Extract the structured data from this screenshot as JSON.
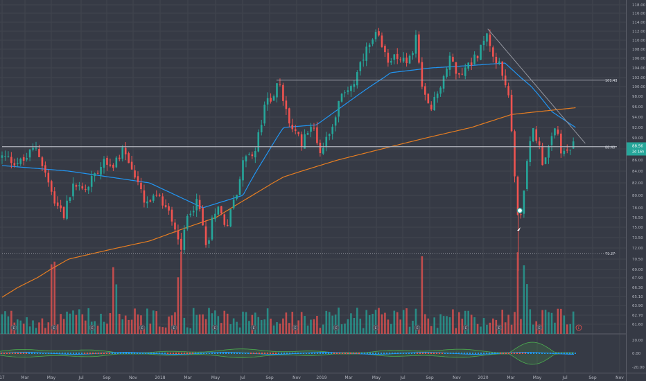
{
  "colors": {
    "background": "#363a45",
    "grid": "#41454f",
    "axis_text": "#b2b5be",
    "up": "#26a69a",
    "down": "#ef5350",
    "ma_short": "#2196f3",
    "ma_long": "#e67e22",
    "trendline": "#9598a1",
    "price_badge": "#26a69a",
    "osc_green": "#4caf50",
    "osc_blue": "#2196f3",
    "osc_red": "#ef5350"
  },
  "chart_data": [
    {
      "type": "candlestick",
      "title": "",
      "x_ticks": [
        "17",
        "Mar",
        "May",
        "Jul",
        "Sep",
        "Nov",
        "2018",
        "Mar",
        "May",
        "Jul",
        "Sep",
        "Nov",
        "2019",
        "Mar",
        "May",
        "Jul",
        "Sep",
        "Nov",
        "2020",
        "Mar",
        "May",
        "Jul",
        "Sep",
        "Nov"
      ],
      "y_ticks": [
        "118.00",
        "116.00",
        "114.00",
        "112.00",
        "110.00",
        "108.00",
        "106.00",
        "104.00",
        "102.00",
        "100.00",
        "98.00",
        "96.00",
        "94.00",
        "92.00",
        "90.00",
        "88.00",
        "86.00",
        "84.00",
        "82.00",
        "80.00",
        "78.00",
        "76.50",
        "75.00",
        "73.50",
        "72.00",
        "70.50",
        "69.00",
        "67.90",
        "66.30",
        "65.10",
        "63.90",
        "62.70",
        "61.60"
      ],
      "ylim": [
        60.5,
        119
      ],
      "scale": "log",
      "grid": true,
      "close_anchors": [
        {
          "date": "2017-01-01",
          "close": 86.5
        },
        {
          "date": "2017-02-15",
          "close": 85.5
        },
        {
          "date": "2017-03-20",
          "close": 88.5
        },
        {
          "date": "2017-04-20",
          "close": 81
        },
        {
          "date": "2017-05-20",
          "close": 77
        },
        {
          "date": "2017-06-15",
          "close": 82
        },
        {
          "date": "2017-07-05",
          "close": 80.5
        },
        {
          "date": "2017-07-25",
          "close": 83
        },
        {
          "date": "2017-08-20",
          "close": 86.5
        },
        {
          "date": "2017-09-10",
          "close": 85
        },
        {
          "date": "2017-10-01",
          "close": 88
        },
        {
          "date": "2017-10-25",
          "close": 84
        },
        {
          "date": "2017-11-20",
          "close": 78.5
        },
        {
          "date": "2017-12-20",
          "close": 79.5
        },
        {
          "date": "2018-01-15",
          "close": 78
        },
        {
          "date": "2018-02-10",
          "close": 72
        },
        {
          "date": "2018-03-01",
          "close": 77.5
        },
        {
          "date": "2018-03-20",
          "close": 79
        },
        {
          "date": "2018-04-10",
          "close": 72.5
        },
        {
          "date": "2018-05-01",
          "close": 78.5
        },
        {
          "date": "2018-05-25",
          "close": 75.5
        },
        {
          "date": "2018-06-15",
          "close": 80
        },
        {
          "date": "2018-07-10",
          "close": 88
        },
        {
          "date": "2018-07-25",
          "close": 86
        },
        {
          "date": "2018-08-20",
          "close": 96
        },
        {
          "date": "2018-09-20",
          "close": 100.5
        },
        {
          "date": "2018-10-10",
          "close": 94
        },
        {
          "date": "2018-10-25",
          "close": 91
        },
        {
          "date": "2018-11-10",
          "close": 89
        },
        {
          "date": "2018-11-30",
          "close": 93
        },
        {
          "date": "2018-12-25",
          "close": 87.5
        },
        {
          "date": "2019-01-20",
          "close": 93
        },
        {
          "date": "2019-02-15",
          "close": 99
        },
        {
          "date": "2019-03-10",
          "close": 101
        },
        {
          "date": "2019-04-10",
          "close": 108
        },
        {
          "date": "2019-05-01",
          "close": 111
        },
        {
          "date": "2019-05-20",
          "close": 106
        },
        {
          "date": "2019-06-15",
          "close": 107
        },
        {
          "date": "2019-07-10",
          "close": 104
        },
        {
          "date": "2019-07-30",
          "close": 111.5
        },
        {
          "date": "2019-08-10",
          "close": 99
        },
        {
          "date": "2019-08-30",
          "close": 95
        },
        {
          "date": "2019-09-20",
          "close": 100
        },
        {
          "date": "2019-10-15",
          "close": 106
        },
        {
          "date": "2019-11-01",
          "close": 103
        },
        {
          "date": "2019-11-20",
          "close": 104
        },
        {
          "date": "2019-12-15",
          "close": 107
        },
        {
          "date": "2020-01-05",
          "close": 111
        },
        {
          "date": "2020-01-25",
          "close": 106
        },
        {
          "date": "2020-02-20",
          "close": 100
        },
        {
          "date": "2020-03-01",
          "close": 92
        },
        {
          "date": "2020-03-16",
          "close": 75
        },
        {
          "date": "2020-03-25",
          "close": 77
        },
        {
          "date": "2020-04-05",
          "close": 86
        },
        {
          "date": "2020-04-20",
          "close": 92
        },
        {
          "date": "2020-05-10",
          "close": 86
        },
        {
          "date": "2020-05-30",
          "close": 89
        },
        {
          "date": "2020-06-10",
          "close": 92
        },
        {
          "date": "2020-06-25",
          "close": 86.5
        },
        {
          "date": "2020-07-10",
          "close": 88
        },
        {
          "date": "2020-07-24",
          "close": 88.5
        }
      ],
      "annotations": [
        {
          "label": "101.43",
          "price": 101.43
        },
        {
          "label": "88.40",
          "price": 88.4
        },
        {
          "label": "71.27",
          "price": 71.27
        }
      ],
      "last_price": {
        "value": "88.56",
        "time_label": "2d 16h"
      },
      "trendline": {
        "from": {
          "date": "2020-01-07",
          "price": 112.5
        },
        "to": {
          "date": "2020-08-15",
          "price": 89
        }
      },
      "moving_averages": [
        {
          "color_key": "ma_short",
          "anchors": [
            {
              "date": "2017-01-01",
              "value": 85
            },
            {
              "date": "2017-06-01",
              "value": 84
            },
            {
              "date": "2017-12-01",
              "value": 82
            },
            {
              "date": "2018-04-01",
              "value": 78
            },
            {
              "date": "2018-07-01",
              "value": 80
            },
            {
              "date": "2018-10-01",
              "value": 92
            },
            {
              "date": "2018-12-15",
              "value": 92.5
            },
            {
              "date": "2019-03-15",
              "value": 98
            },
            {
              "date": "2019-06-01",
              "value": 103
            },
            {
              "date": "2019-09-01",
              "value": 104
            },
            {
              "date": "2019-12-01",
              "value": 104.5
            },
            {
              "date": "2020-02-15",
              "value": 105
            },
            {
              "date": "2020-04-15",
              "value": 100
            },
            {
              "date": "2020-06-01",
              "value": 95
            },
            {
              "date": "2020-07-24",
              "value": 92
            }
          ]
        },
        {
          "color_key": "ma_long",
          "anchors": [
            {
              "date": "2017-01-01",
              "value": 65
            },
            {
              "date": "2017-06-01",
              "value": 70.5
            },
            {
              "date": "2017-12-01",
              "value": 73
            },
            {
              "date": "2018-05-01",
              "value": 76.5
            },
            {
              "date": "2018-10-01",
              "value": 83
            },
            {
              "date": "2019-02-01",
              "value": 86
            },
            {
              "date": "2019-07-01",
              "value": 89
            },
            {
              "date": "2019-12-01",
              "value": 92
            },
            {
              "date": "2020-03-01",
              "value": 94.5
            },
            {
              "date": "2020-07-24",
              "value": 95.8
            }
          ]
        }
      ]
    },
    {
      "type": "bar",
      "title": "",
      "note": "volume",
      "spikes": [
        "2017-04-25",
        "2017-09-15",
        "2018-02-06",
        "2019-08-10",
        "2020-03-16",
        "2020-04-01"
      ]
    },
    {
      "type": "line",
      "title": "",
      "y_ticks": [
        "20.00",
        "0.00",
        "-20.00"
      ],
      "ylim": [
        -26,
        26
      ]
    }
  ]
}
